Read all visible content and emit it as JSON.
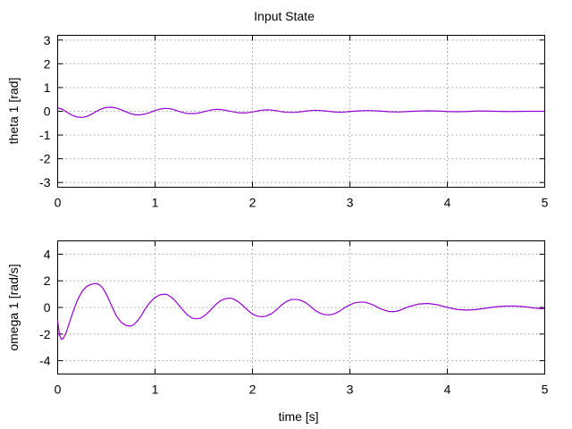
{
  "title": "Input State",
  "colors": {
    "series": "#9400d3"
  },
  "chart_data": [
    {
      "type": "line",
      "ylabel": "theta 1 [rad]",
      "xlabel": "",
      "xlim": [
        0,
        5
      ],
      "ylim": [
        -3.2,
        3.2
      ],
      "xticks": [
        "0",
        "1",
        "2",
        "3",
        "4",
        "5"
      ],
      "yticks": [
        "3",
        "2",
        "1",
        "0",
        "-1",
        "-2",
        "-3"
      ],
      "grid": true,
      "series": [
        {
          "x": [
            0,
            0.05,
            0.1,
            0.15,
            0.2,
            0.25,
            0.3,
            0.35,
            0.4,
            0.45,
            0.5,
            0.55,
            0.6,
            0.65,
            0.7,
            0.75,
            0.8,
            0.85,
            0.9,
            0.95,
            1,
            1.05,
            1.1,
            1.15,
            1.2,
            1.25,
            1.3,
            1.35,
            1.4,
            1.45,
            1.5,
            1.55,
            1.6,
            1.65,
            1.7,
            1.75,
            1.8,
            1.85,
            1.9,
            1.95,
            2,
            2.05,
            2.1,
            2.15,
            2.2,
            2.25,
            2.3,
            2.35,
            2.4,
            2.45,
            2.5,
            2.55,
            2.6,
            2.65,
            2.7,
            2.75,
            2.8,
            2.85,
            2.9,
            2.95,
            3,
            3.1,
            3.2,
            3.3,
            3.4,
            3.5,
            3.6,
            3.7,
            3.8,
            3.9,
            4,
            4.1,
            4.2,
            4.3,
            4.4,
            4.5,
            4.6,
            4.7,
            4.8,
            4.9,
            5
          ],
          "values": [
            0.15,
            0.08,
            -0.05,
            -0.17,
            -0.24,
            -0.26,
            -0.22,
            -0.12,
            0.0,
            0.1,
            0.16,
            0.17,
            0.14,
            0.07,
            -0.02,
            -0.1,
            -0.15,
            -0.15,
            -0.11,
            -0.05,
            0.03,
            0.09,
            0.12,
            0.11,
            0.06,
            -0.01,
            -0.07,
            -0.1,
            -0.1,
            -0.07,
            -0.02,
            0.03,
            0.07,
            0.08,
            0.06,
            0.02,
            -0.02,
            -0.06,
            -0.07,
            -0.06,
            -0.03,
            0.01,
            0.05,
            0.06,
            0.05,
            0.02,
            -0.02,
            -0.04,
            -0.05,
            -0.04,
            -0.02,
            0.01,
            0.03,
            0.04,
            0.03,
            0.01,
            -0.01,
            -0.03,
            -0.04,
            -0.03,
            -0.01,
            0.02,
            0.03,
            0.01,
            -0.02,
            -0.03,
            -0.01,
            0.01,
            0.02,
            0.01,
            -0.01,
            -0.02,
            -0.01,
            0.01,
            0.01,
            0.0,
            -0.01,
            -0.01,
            0.0,
            0.0,
            0.0
          ]
        }
      ]
    },
    {
      "type": "line",
      "ylabel": "omega 1 [rad/s]",
      "xlabel": "time [s]",
      "xlim": [
        0,
        5
      ],
      "ylim": [
        -5,
        5
      ],
      "xticks": [
        "0",
        "1",
        "2",
        "3",
        "4",
        "5"
      ],
      "yticks": [
        "4",
        "2",
        "0",
        "-2",
        "-4"
      ],
      "grid": true,
      "series": [
        {
          "x": [
            0,
            0.02,
            0.04,
            0.06,
            0.08,
            0.1,
            0.15,
            0.2,
            0.25,
            0.3,
            0.35,
            0.4,
            0.43,
            0.46,
            0.5,
            0.55,
            0.6,
            0.65,
            0.7,
            0.75,
            0.78,
            0.82,
            0.86,
            0.9,
            0.95,
            1.0,
            1.05,
            1.1,
            1.13,
            1.18,
            1.23,
            1.28,
            1.33,
            1.38,
            1.43,
            1.47,
            1.52,
            1.57,
            1.62,
            1.67,
            1.72,
            1.77,
            1.8,
            1.85,
            1.9,
            1.95,
            2.0,
            2.05,
            2.1,
            2.14,
            2.2,
            2.25,
            2.3,
            2.35,
            2.4,
            2.45,
            2.49,
            2.55,
            2.6,
            2.65,
            2.7,
            2.75,
            2.8,
            2.85,
            2.9,
            2.95,
            3.0,
            3.05,
            3.1,
            3.15,
            3.2,
            3.25,
            3.3,
            3.35,
            3.4,
            3.45,
            3.5,
            3.55,
            3.6,
            3.7,
            3.8,
            3.9,
            4.0,
            4.1,
            4.2,
            4.3,
            4.4,
            4.5,
            4.6,
            4.7,
            4.8,
            4.9,
            5.0
          ],
          "values": [
            -1.0,
            -2.1,
            -2.4,
            -2.3,
            -2.0,
            -1.6,
            -0.5,
            0.5,
            1.2,
            1.6,
            1.75,
            1.8,
            1.7,
            1.5,
            1.0,
            0.2,
            -0.6,
            -1.1,
            -1.35,
            -1.4,
            -1.3,
            -1.0,
            -0.6,
            -0.1,
            0.4,
            0.75,
            0.95,
            1.0,
            0.95,
            0.7,
            0.3,
            -0.15,
            -0.55,
            -0.8,
            -0.85,
            -0.8,
            -0.55,
            -0.2,
            0.2,
            0.5,
            0.65,
            0.7,
            0.65,
            0.45,
            0.15,
            -0.2,
            -0.5,
            -0.65,
            -0.7,
            -0.65,
            -0.45,
            -0.15,
            0.2,
            0.45,
            0.6,
            0.6,
            0.55,
            0.35,
            0.05,
            -0.25,
            -0.45,
            -0.55,
            -0.55,
            -0.45,
            -0.25,
            0.0,
            0.2,
            0.35,
            0.4,
            0.4,
            0.3,
            0.15,
            -0.05,
            -0.2,
            -0.3,
            -0.32,
            -0.25,
            -0.1,
            0.05,
            0.25,
            0.3,
            0.2,
            0.0,
            -0.15,
            -0.2,
            -0.15,
            -0.05,
            0.05,
            0.1,
            0.1,
            0.05,
            -0.05,
            -0.1
          ]
        }
      ]
    }
  ]
}
